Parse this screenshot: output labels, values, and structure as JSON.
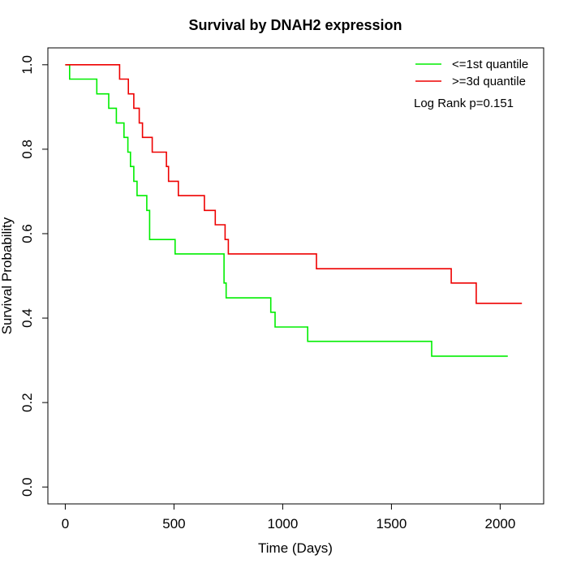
{
  "chart_data": {
    "type": "line",
    "title": "Survival by DNAH2 expression",
    "xlabel": "Time (Days)",
    "ylabel": "Survival Probability",
    "xlim": [
      -80,
      2200
    ],
    "ylim": [
      -0.04,
      1.04
    ],
    "xticks": [
      0,
      500,
      1000,
      1500,
      2000
    ],
    "yticks": [
      0.0,
      0.2,
      0.4,
      0.6,
      0.8,
      1.0
    ],
    "xtick_labels": [
      "0",
      "500",
      "1000",
      "1500",
      "2000"
    ],
    "ytick_labels": [
      "0.0",
      "0.2",
      "0.4",
      "0.6",
      "0.8",
      "1.0"
    ],
    "legend_position": "top-right",
    "annotation": "Log Rank p=0.151",
    "series": [
      {
        "name": "<=1st quantile",
        "color": "#00ee00",
        "steps": [
          [
            0,
            1.0
          ],
          [
            20,
            0.966
          ],
          [
            145,
            0.931
          ],
          [
            200,
            0.897
          ],
          [
            235,
            0.862
          ],
          [
            270,
            0.828
          ],
          [
            288,
            0.793
          ],
          [
            300,
            0.759
          ],
          [
            315,
            0.724
          ],
          [
            330,
            0.69
          ],
          [
            375,
            0.655
          ],
          [
            388,
            0.586
          ],
          [
            505,
            0.552
          ],
          [
            730,
            0.483
          ],
          [
            740,
            0.448
          ],
          [
            945,
            0.414
          ],
          [
            965,
            0.379
          ],
          [
            1115,
            0.345
          ],
          [
            1685,
            0.31
          ],
          [
            2035,
            0.31
          ]
        ]
      },
      {
        "name": ">=3d quantile",
        "color": "#ee0000",
        "steps": [
          [
            0,
            1.0
          ],
          [
            250,
            0.966
          ],
          [
            290,
            0.931
          ],
          [
            315,
            0.897
          ],
          [
            340,
            0.862
          ],
          [
            355,
            0.828
          ],
          [
            400,
            0.793
          ],
          [
            465,
            0.759
          ],
          [
            475,
            0.724
          ],
          [
            520,
            0.69
          ],
          [
            640,
            0.655
          ],
          [
            690,
            0.621
          ],
          [
            735,
            0.586
          ],
          [
            750,
            0.552
          ],
          [
            1155,
            0.517
          ],
          [
            1775,
            0.483
          ],
          [
            1890,
            0.435
          ],
          [
            2100,
            0.435
          ]
        ]
      }
    ]
  }
}
